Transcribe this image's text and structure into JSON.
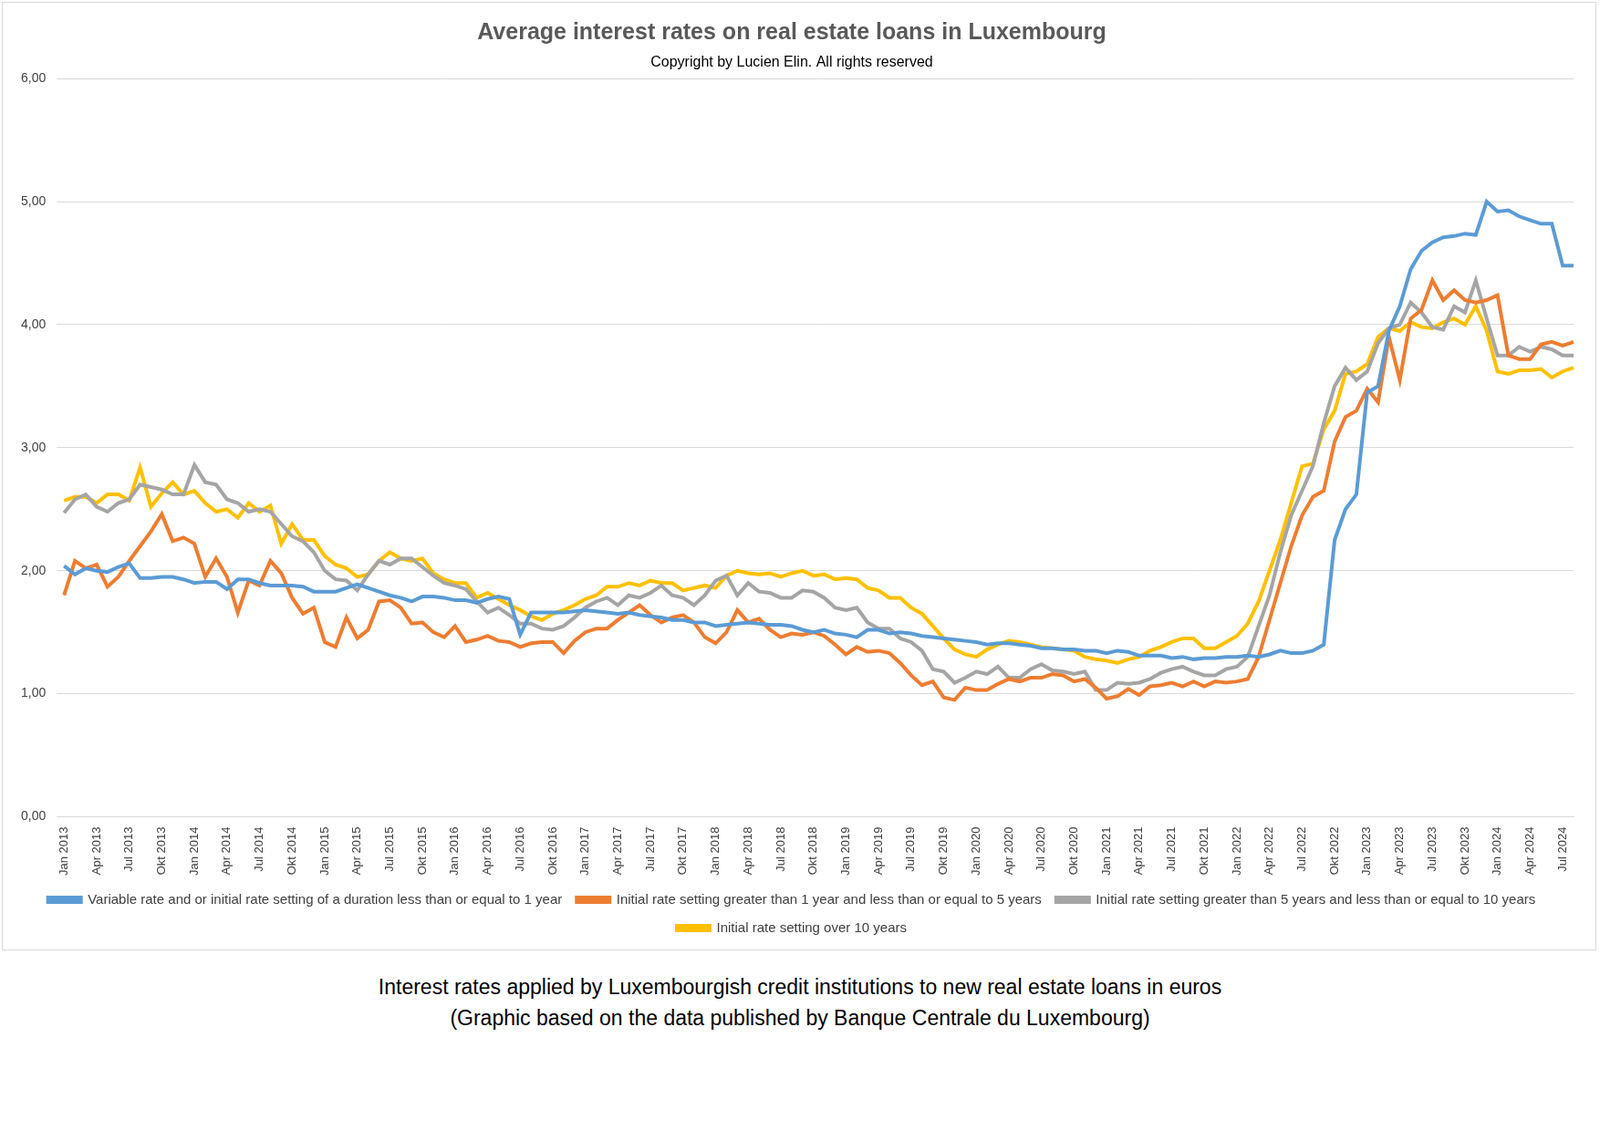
{
  "chart_data": {
    "type": "line",
    "title": "Average interest rates on real estate loans in Luxembourg",
    "subtitle": "Copyright by Lucien Elin. All rights reserved",
    "caption": [
      "Interest rates applied by Luxembourgish credit institutions to new real estate loans in euros",
      "(Graphic based on the data published by Banque Centrale du Luxembourg)"
    ],
    "categories": [
      "Jan 2013",
      null,
      null,
      "Apr 2013",
      null,
      null,
      "Jul 2013",
      null,
      null,
      "Okt 2013",
      null,
      null,
      "Jan 2014",
      null,
      null,
      "Apr 2014",
      null,
      null,
      "Jul 2014",
      null,
      null,
      "Okt 2014",
      null,
      null,
      "Jan 2015",
      null,
      null,
      "Apr 2015",
      null,
      null,
      "Jul 2015",
      null,
      null,
      "Okt 2015",
      null,
      null,
      "Jan 2016",
      null,
      null,
      "Apr 2016",
      null,
      null,
      "Jul 2016",
      null,
      null,
      "Okt 2016",
      null,
      null,
      "Jan 2017",
      null,
      null,
      "Apr 2017",
      null,
      null,
      "Jul 2017",
      null,
      null,
      "Okt 2017",
      null,
      null,
      "Jan 2018",
      null,
      null,
      "Apr 2018",
      null,
      null,
      "Jul 2018",
      null,
      null,
      "Okt 2018",
      null,
      null,
      "Jan 2019",
      null,
      null,
      "Apr 2019",
      null,
      null,
      "Jul 2019",
      null,
      null,
      "Okt 2019",
      null,
      null,
      "Jan 2020",
      null,
      null,
      "Apr 2020",
      null,
      null,
      "Jul 2020",
      null,
      null,
      "Okt 2020",
      null,
      null,
      "Jan 2021",
      null,
      null,
      "Apr 2021",
      null,
      null,
      "Jul 2021",
      null,
      null,
      "Okt 2021",
      null,
      null,
      "Jan 2022",
      null,
      null,
      "Apr 2022",
      null,
      null,
      "Jul 2022",
      null,
      null,
      "Okt 2022",
      null,
      null,
      "Jan 2023",
      null,
      null,
      "Apr 2023",
      null,
      null,
      "Jul 2023",
      null,
      null,
      "Okt 2023",
      null,
      null,
      "Jan 2024",
      null,
      null,
      "Apr 2024",
      null,
      null,
      "Jul 2024",
      null
    ],
    "series": [
      {
        "name": "Variable rate and or initial rate setting of a duration less than or equal to 1 year",
        "color": "#5b9bd5",
        "values": [
          2.04,
          1.97,
          2.02,
          2.0,
          1.99,
          2.03,
          2.06,
          1.94,
          1.94,
          1.95,
          1.95,
          1.93,
          1.9,
          1.91,
          1.91,
          1.85,
          1.93,
          1.93,
          1.9,
          1.88,
          1.88,
          1.88,
          1.87,
          1.83,
          1.83,
          1.83,
          1.86,
          1.89,
          1.86,
          1.83,
          1.8,
          1.78,
          1.75,
          1.79,
          1.79,
          1.78,
          1.76,
          1.76,
          1.74,
          1.77,
          1.79,
          1.77,
          1.48,
          1.66,
          1.66,
          1.66,
          1.66,
          1.67,
          1.68,
          1.67,
          1.66,
          1.65,
          1.66,
          1.64,
          1.63,
          1.62,
          1.6,
          1.6,
          1.58,
          1.58,
          1.55,
          1.56,
          1.57,
          1.58,
          1.57,
          1.56,
          1.56,
          1.55,
          1.52,
          1.5,
          1.52,
          1.49,
          1.48,
          1.46,
          1.52,
          1.52,
          1.49,
          1.5,
          1.49,
          1.47,
          1.46,
          1.45,
          1.44,
          1.43,
          1.42,
          1.4,
          1.41,
          1.41,
          1.4,
          1.39,
          1.37,
          1.37,
          1.36,
          1.36,
          1.35,
          1.35,
          1.33,
          1.35,
          1.34,
          1.31,
          1.31,
          1.31,
          1.29,
          1.3,
          1.28,
          1.29,
          1.29,
          1.3,
          1.3,
          1.31,
          1.3,
          1.32,
          1.35,
          1.33,
          1.33,
          1.35,
          1.4,
          2.25,
          2.5,
          2.62,
          3.45,
          3.5,
          3.95,
          4.15,
          4.45,
          4.6,
          4.67,
          4.71,
          4.72,
          4.74,
          4.73,
          5.0,
          4.92,
          4.93,
          4.88,
          4.85,
          4.82,
          4.82,
          4.48,
          4.48
        ]
      },
      {
        "name": "Initial rate setting greater than 1 year and less than or equal to 5 years",
        "color": "#ed7d31",
        "values": [
          1.8,
          2.08,
          2.02,
          2.05,
          1.87,
          1.95,
          2.08,
          2.2,
          2.32,
          2.46,
          2.24,
          2.27,
          2.22,
          1.95,
          2.1,
          1.95,
          1.66,
          1.92,
          1.88,
          2.08,
          1.98,
          1.78,
          1.65,
          1.7,
          1.42,
          1.38,
          1.62,
          1.45,
          1.52,
          1.75,
          1.76,
          1.7,
          1.57,
          1.58,
          1.5,
          1.46,
          1.55,
          1.42,
          1.44,
          1.47,
          1.43,
          1.42,
          1.38,
          1.41,
          1.42,
          1.42,
          1.33,
          1.43,
          1.5,
          1.53,
          1.53,
          1.6,
          1.66,
          1.72,
          1.64,
          1.58,
          1.62,
          1.64,
          1.58,
          1.46,
          1.41,
          1.5,
          1.68,
          1.58,
          1.61,
          1.52,
          1.46,
          1.49,
          1.48,
          1.5,
          1.47,
          1.4,
          1.32,
          1.38,
          1.34,
          1.35,
          1.33,
          1.25,
          1.15,
          1.07,
          1.1,
          0.97,
          0.95,
          1.05,
          1.03,
          1.03,
          1.08,
          1.12,
          1.1,
          1.13,
          1.13,
          1.16,
          1.15,
          1.1,
          1.12,
          1.05,
          0.96,
          0.98,
          1.04,
          0.99,
          1.06,
          1.07,
          1.09,
          1.06,
          1.1,
          1.06,
          1.1,
          1.09,
          1.1,
          1.12,
          1.3,
          1.6,
          1.9,
          2.2,
          2.45,
          2.6,
          2.65,
          3.05,
          3.25,
          3.3,
          3.48,
          3.37,
          3.9,
          3.55,
          4.05,
          4.12,
          4.36,
          4.2,
          4.28,
          4.2,
          4.18,
          4.2,
          4.24,
          3.75,
          3.72,
          3.72,
          3.84,
          3.86,
          3.83,
          3.86
        ]
      },
      {
        "name": "Initial rate setting greater than 5 years and less than or equal to 10 years",
        "color": "#a5a5a5",
        "values": [
          2.47,
          2.58,
          2.62,
          2.52,
          2.48,
          2.55,
          2.58,
          2.7,
          2.68,
          2.66,
          2.62,
          2.62,
          2.86,
          2.72,
          2.7,
          2.58,
          2.55,
          2.48,
          2.5,
          2.48,
          2.38,
          2.28,
          2.24,
          2.15,
          2.0,
          1.93,
          1.92,
          1.84,
          1.97,
          2.08,
          2.05,
          2.1,
          2.1,
          2.03,
          1.96,
          1.9,
          1.88,
          1.85,
          1.75,
          1.66,
          1.7,
          1.64,
          1.57,
          1.57,
          1.53,
          1.52,
          1.55,
          1.62,
          1.7,
          1.75,
          1.78,
          1.72,
          1.8,
          1.78,
          1.82,
          1.88,
          1.8,
          1.78,
          1.72,
          1.8,
          1.92,
          1.96,
          1.8,
          1.9,
          1.83,
          1.82,
          1.78,
          1.78,
          1.84,
          1.83,
          1.78,
          1.7,
          1.68,
          1.7,
          1.58,
          1.53,
          1.53,
          1.45,
          1.42,
          1.35,
          1.2,
          1.18,
          1.09,
          1.13,
          1.18,
          1.16,
          1.22,
          1.13,
          1.13,
          1.2,
          1.24,
          1.19,
          1.18,
          1.16,
          1.18,
          1.03,
          1.03,
          1.09,
          1.08,
          1.09,
          1.12,
          1.17,
          1.2,
          1.22,
          1.18,
          1.15,
          1.15,
          1.2,
          1.22,
          1.3,
          1.55,
          1.8,
          2.15,
          2.45,
          2.65,
          2.85,
          3.2,
          3.5,
          3.65,
          3.55,
          3.62,
          3.85,
          3.97,
          4.0,
          4.18,
          4.1,
          3.98,
          3.96,
          4.15,
          4.1,
          4.36,
          4.05,
          3.75,
          3.75,
          3.82,
          3.78,
          3.82,
          3.8,
          3.75,
          3.75
        ]
      },
      {
        "name": "Initial rate setting over 10 years",
        "color": "#ffc000",
        "values": [
          2.57,
          2.6,
          2.6,
          2.55,
          2.62,
          2.62,
          2.57,
          2.84,
          2.52,
          2.63,
          2.72,
          2.62,
          2.65,
          2.55,
          2.48,
          2.5,
          2.43,
          2.55,
          2.48,
          2.53,
          2.22,
          2.38,
          2.25,
          2.25,
          2.12,
          2.05,
          2.02,
          1.95,
          1.97,
          2.08,
          2.15,
          2.1,
          2.08,
          2.1,
          1.98,
          1.93,
          1.9,
          1.9,
          1.78,
          1.82,
          1.77,
          1.72,
          1.68,
          1.63,
          1.6,
          1.65,
          1.68,
          1.72,
          1.77,
          1.8,
          1.87,
          1.87,
          1.9,
          1.88,
          1.92,
          1.9,
          1.9,
          1.84,
          1.86,
          1.88,
          1.86,
          1.96,
          2.0,
          1.98,
          1.97,
          1.98,
          1.95,
          1.98,
          2.0,
          1.96,
          1.97,
          1.93,
          1.94,
          1.93,
          1.86,
          1.84,
          1.78,
          1.78,
          1.7,
          1.65,
          1.55,
          1.45,
          1.36,
          1.32,
          1.3,
          1.36,
          1.4,
          1.43,
          1.42,
          1.4,
          1.38,
          1.37,
          1.36,
          1.35,
          1.3,
          1.28,
          1.27,
          1.25,
          1.28,
          1.3,
          1.35,
          1.38,
          1.42,
          1.45,
          1.45,
          1.37,
          1.37,
          1.42,
          1.47,
          1.57,
          1.75,
          2.0,
          2.25,
          2.55,
          2.85,
          2.87,
          3.15,
          3.3,
          3.6,
          3.62,
          3.68,
          3.9,
          3.97,
          3.95,
          4.02,
          3.98,
          3.97,
          4.02,
          4.05,
          4.0,
          4.15,
          3.95,
          3.62,
          3.6,
          3.63,
          3.63,
          3.64,
          3.57,
          3.62,
          3.65
        ]
      }
    ],
    "ylim": [
      0,
      6
    ],
    "yticks": [
      {
        "value": 0,
        "label": "0,00"
      },
      {
        "value": 1,
        "label": "1,00"
      },
      {
        "value": 2,
        "label": "2,00"
      },
      {
        "value": 3,
        "label": "3,00"
      },
      {
        "value": 4,
        "label": "4,00"
      },
      {
        "value": 5,
        "label": "5,00"
      },
      {
        "value": 6,
        "label": "6,00"
      }
    ],
    "grid": true,
    "legend": "bottom"
  }
}
